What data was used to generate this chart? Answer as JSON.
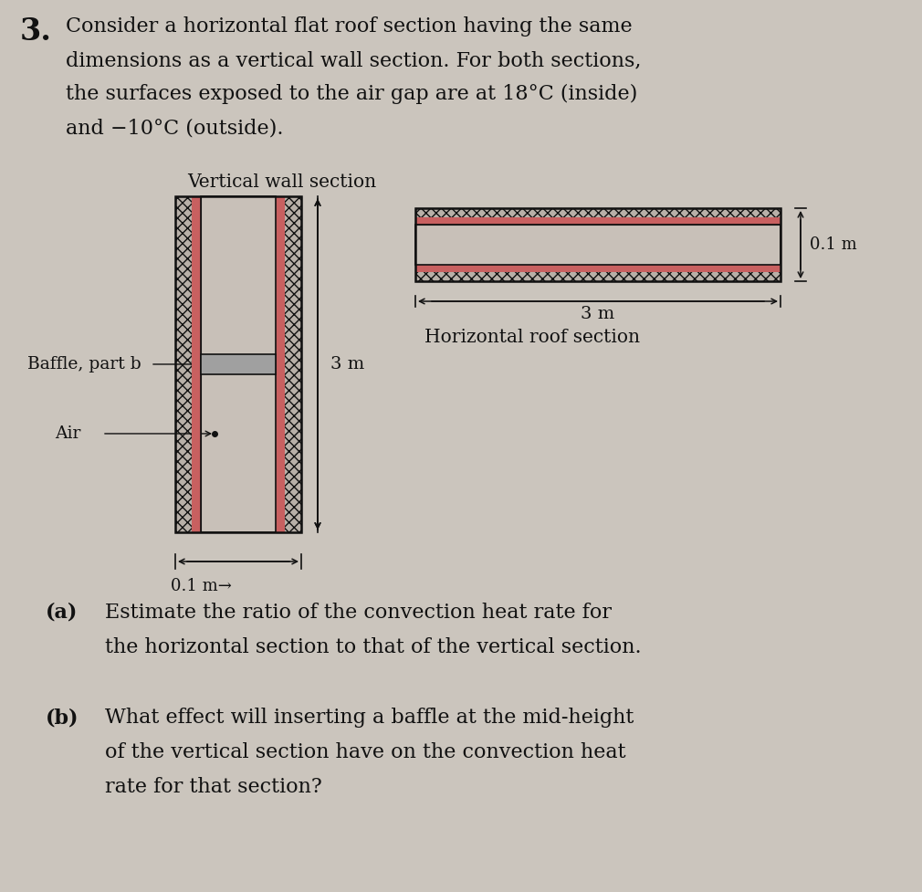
{
  "bg_color": "#cbc5bd",
  "title_number": "3.",
  "title_text_lines": [
    "Consider a horizontal flat roof section having the same",
    "dimensions as a vertical wall section. For both sections,",
    "the surfaces exposed to the air gap are at 18°C (inside)",
    "and −10°C (outside)."
  ],
  "vertical_label": "Vertical wall section",
  "horizontal_label": "Horizontal roof section",
  "baffle_label": "Baffle, part b",
  "air_label": "Air",
  "dim_3m_label": "3 m",
  "dim_01m_label_h": "0.1 m",
  "dim_01m_label_v": "0.1 m",
  "wall_hatch_color": "#b0a8a0",
  "wall_inner_color": "#c8c0b8",
  "wall_red_color": "#c86060",
  "wall_border_color": "#111111",
  "text_color": "#111111",
  "font_size_body": 16,
  "font_size_label": 13.5,
  "font_size_number": 24,
  "font_size_dim": 13
}
